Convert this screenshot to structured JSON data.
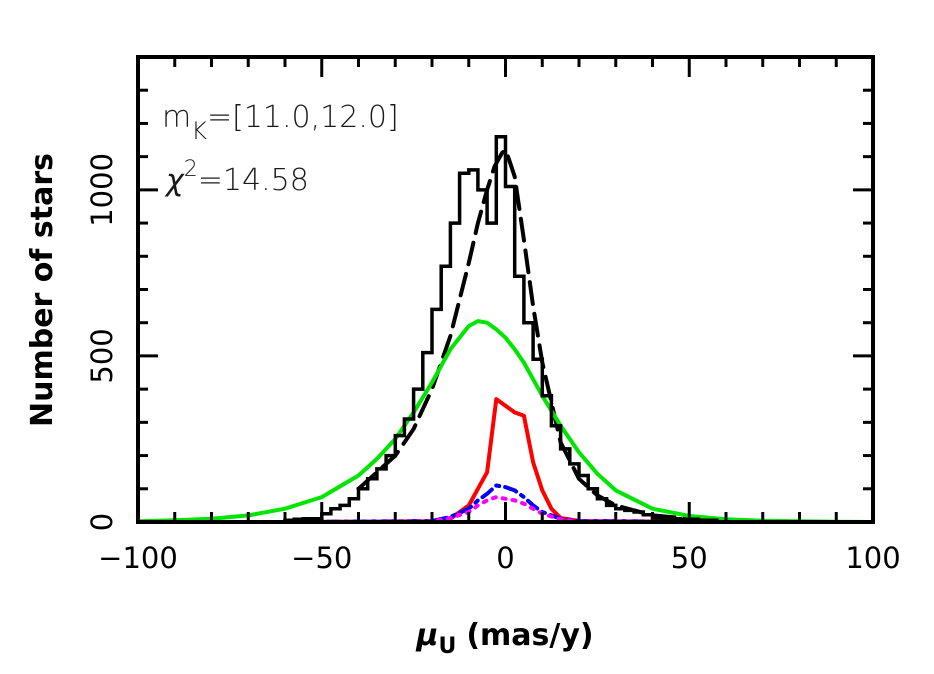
{
  "chart_data": {
    "type": "line",
    "xlabel_symbol": "μ",
    "xlabel_sub": "U",
    "xlabel_unit": "(mas/y)",
    "ylabel": "Number of stars",
    "xlim": [
      -100,
      100
    ],
    "ylim": [
      0,
      1400
    ],
    "x_ticks": [
      -100,
      -50,
      0,
      50,
      100
    ],
    "x_tick_labels": [
      "−100",
      "−50",
      "0",
      "50",
      "100"
    ],
    "y_ticks": [
      0,
      500,
      1000
    ],
    "y_tick_labels": [
      "0",
      "500",
      "1000"
    ],
    "annotations": {
      "mag_prefix": "m",
      "mag_sub": "K",
      "mag_range": "=[11.0,12.0]",
      "chi_symbol": "χ",
      "chi_sup": "2",
      "chi_value": "=14.58"
    },
    "histogram": {
      "edges": [
        -100,
        -97.5,
        -95,
        -92.5,
        -90,
        -87.5,
        -85,
        -82.5,
        -80,
        -77.5,
        -75,
        -72.5,
        -70,
        -67.5,
        -65,
        -62.5,
        -60,
        -57.5,
        -55,
        -52.5,
        -50,
        -47.5,
        -45,
        -42.5,
        -40,
        -37.5,
        -35,
        -32.5,
        -30,
        -27.5,
        -25,
        -22.5,
        -20,
        -17.5,
        -15,
        -12.5,
        -10,
        -7.5,
        -5,
        -2.5,
        0,
        2.5,
        5,
        7.5,
        10,
        12.5,
        15,
        17.5,
        20,
        22.5,
        25,
        27.5,
        30,
        32.5,
        35,
        37.5,
        40,
        42.5,
        45,
        47.5,
        50,
        52.5,
        55,
        57.5,
        60,
        62.5,
        65,
        67.5,
        70,
        72.5,
        75,
        77.5,
        80,
        82.5,
        85,
        87.5,
        90,
        92.5,
        95,
        97.5,
        100
      ],
      "counts": [
        0,
        0,
        0,
        0,
        0,
        0,
        0,
        0,
        0,
        0,
        0,
        0,
        0,
        0,
        0,
        0,
        5,
        8,
        10,
        10,
        25,
        40,
        50,
        70,
        100,
        130,
        160,
        200,
        260,
        310,
        400,
        510,
        640,
        770,
        900,
        1050,
        1060,
        1000,
        900,
        1160,
        1010,
        740,
        600,
        490,
        380,
        290,
        220,
        175,
        140,
        100,
        70,
        50,
        40,
        35,
        30,
        22,
        12,
        10,
        10,
        8,
        8,
        5,
        5,
        0,
        0,
        0,
        0,
        0,
        0,
        0,
        0,
        0,
        0,
        0,
        0,
        0,
        0,
        0,
        0,
        0
      ]
    },
    "series": [
      {
        "color": "#000000",
        "style": "dashed",
        "x": [
          -40,
          -30,
          -25,
          -20,
          -15,
          -10,
          -7.5,
          -5,
          -3,
          -1,
          0,
          1,
          2.5,
          5,
          7.5,
          10,
          15,
          20,
          25,
          30,
          40,
          50
        ],
        "y": [
          100,
          200,
          280,
          400,
          560,
          780,
          900,
          1000,
          1070,
          1110,
          1120,
          1090,
          1040,
          850,
          650,
          480,
          240,
          130,
          80,
          50,
          20,
          10
        ]
      },
      {
        "color": "#00e600",
        "style": "solid",
        "x": [
          -100,
          -90,
          -80,
          -70,
          -60,
          -50,
          -40,
          -35,
          -30,
          -25,
          -20,
          -15,
          -10,
          -7.5,
          -5,
          -2.5,
          0,
          2.5,
          5,
          10,
          15,
          20,
          25,
          30,
          40,
          50,
          60,
          70,
          80,
          90,
          100
        ],
        "y": [
          2,
          5,
          10,
          20,
          40,
          75,
          140,
          190,
          250,
          330,
          420,
          520,
          590,
          605,
          600,
          580,
          555,
          520,
          480,
          380,
          290,
          210,
          145,
          95,
          40,
          18,
          8,
          4,
          2,
          1,
          0
        ]
      },
      {
        "color": "#ff0000",
        "style": "solid",
        "x": [
          -100,
          -60,
          -20,
          -15,
          -10,
          -5,
          -2.5,
          0,
          2.5,
          5,
          7.5,
          10,
          12.5,
          15,
          20,
          60,
          100
        ],
        "y": [
          0,
          0,
          2,
          10,
          50,
          150,
          370,
          350,
          330,
          320,
          180,
          95,
          40,
          12,
          3,
          0,
          0
        ]
      },
      {
        "color": "#0000ff",
        "style": "dashdot",
        "x": [
          -100,
          -60,
          -20,
          -15,
          -10,
          -7.5,
          -5,
          -2.5,
          0,
          2.5,
          5,
          7.5,
          10,
          15,
          20,
          60,
          100
        ],
        "y": [
          0,
          0,
          3,
          15,
          40,
          65,
          85,
          110,
          105,
          95,
          75,
          50,
          30,
          10,
          3,
          0,
          0
        ]
      },
      {
        "color": "#ff00ff",
        "style": "dotted",
        "x": [
          -100,
          -60,
          -20,
          -15,
          -10,
          -7.5,
          -5,
          -2.5,
          0,
          2.5,
          5,
          7.5,
          10,
          15,
          20,
          60,
          100
        ],
        "y": [
          0,
          0,
          2,
          12,
          30,
          50,
          65,
          75,
          70,
          65,
          55,
          40,
          25,
          8,
          2,
          0,
          0
        ]
      }
    ]
  }
}
